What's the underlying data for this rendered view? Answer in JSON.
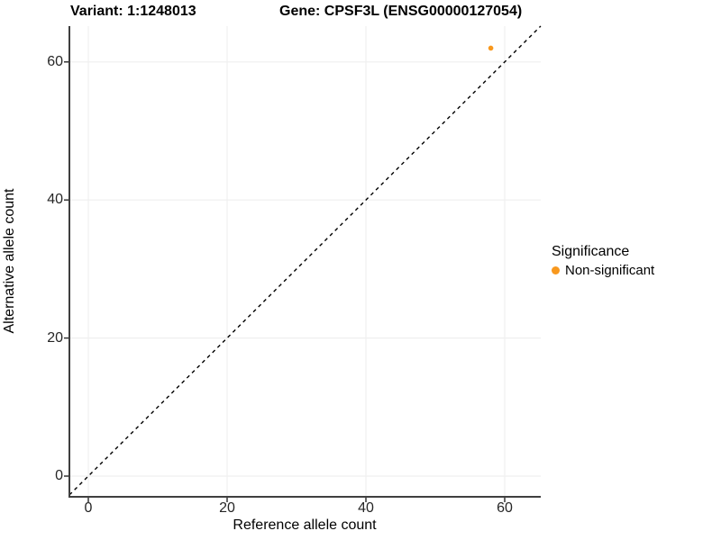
{
  "chart_data": {
    "type": "scatter",
    "titles": {
      "variant": "Variant: 1:1248013",
      "gene": "Gene: CPSF3L (ENSG00000127054)"
    },
    "xlabel": "Reference allele count",
    "ylabel": "Alternative allele count",
    "x_ticks": [
      0,
      20,
      40,
      60
    ],
    "y_ticks": [
      0,
      20,
      40,
      60
    ],
    "xlim": [
      -2.7,
      65.2
    ],
    "ylim": [
      -3.0,
      65.5
    ],
    "grid": "major gridlines only, very light gray, white panel background",
    "identity_line": {
      "equation": "y = x",
      "style": "dashed",
      "color": "#000000"
    },
    "points": [
      {
        "x": 58,
        "y": 62,
        "series": "Non-significant"
      }
    ],
    "series": [
      {
        "name": "Non-significant",
        "color": "#F8981D"
      }
    ],
    "legend": {
      "position": "right",
      "title": "Significance",
      "items": [
        {
          "label": "Non-significant",
          "color": "#F8981D"
        }
      ]
    },
    "colors": {
      "point": "#F8981D",
      "axis_line": "#3F3F3F",
      "tick_mark": "#333333",
      "gridline": "#EFEFEF",
      "tick_label": "#262626"
    }
  }
}
